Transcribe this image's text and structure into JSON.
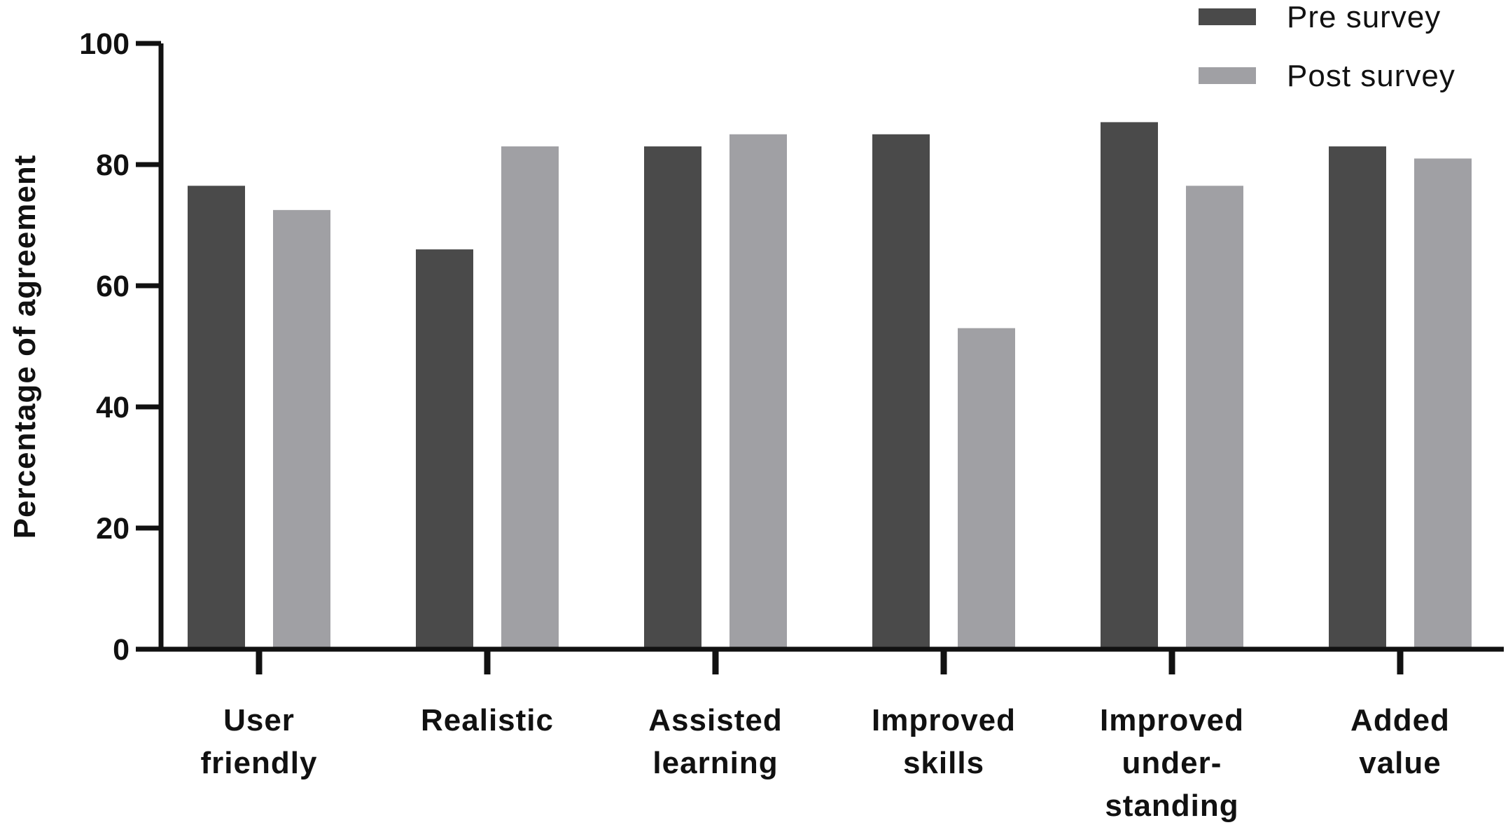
{
  "chart_data": {
    "type": "bar",
    "categories": [
      [
        "User",
        "friendly"
      ],
      [
        "Realistic"
      ],
      [
        "Assisted",
        "learning"
      ],
      [
        "Improved",
        "skills"
      ],
      [
        "Improved",
        "under-",
        "standing"
      ],
      [
        "Added",
        "value"
      ]
    ],
    "series": [
      {
        "name": "Pre survey",
        "color": "#4a4a4a",
        "values": [
          76.5,
          66,
          83,
          85,
          87,
          83
        ]
      },
      {
        "name": "Post survey",
        "color": "#a0a0a4",
        "values": [
          72.5,
          83,
          85,
          53,
          76.5,
          81
        ]
      }
    ],
    "title": "",
    "xlabel": "",
    "ylabel": "Percentage of agreement",
    "ylim": [
      0,
      100
    ],
    "yticks": [
      0,
      20,
      40,
      60,
      80,
      100
    ],
    "grid": false,
    "legend_position": "top-right"
  }
}
